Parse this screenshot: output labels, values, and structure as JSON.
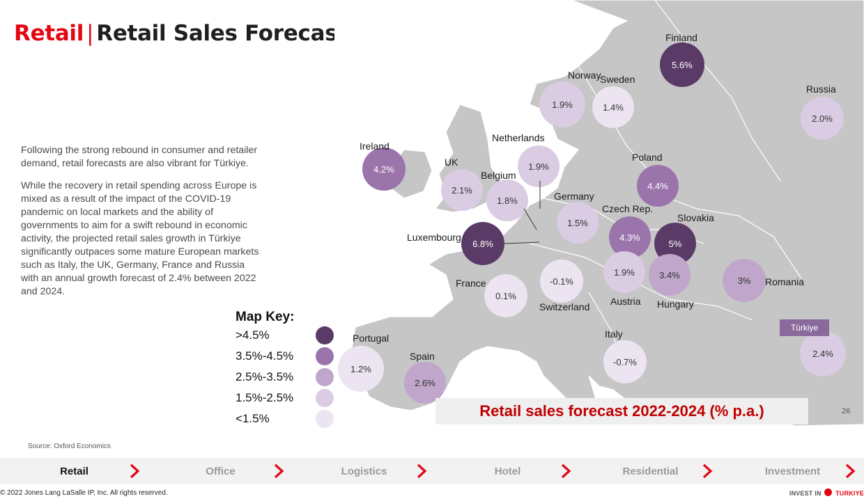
{
  "title": {
    "accent": "Retail",
    "separator": "|",
    "main": "Retail Sales Forecast"
  },
  "intro": [
    "Following the strong rebound in consumer and retailer demand, retail forecasts are also vibrant for Türkiye.",
    "While the recovery in retail spending across Europe is mixed as a result of the impact of the COVID-19 pandemic on local markets and the ability of governments to aim for a swift rebound in economic activity, the projected retail sales growth in Türkiye significantly outpaces some mature European markets such as Italy, the UK, Germany, France and Russia with an annual growth forecast of 2.4% between 2022 and 2024."
  ],
  "map_key": {
    "title": "Map Key:",
    "items": [
      {
        "label": ">4.5%",
        "color": "#5a3a66"
      },
      {
        "label": "3.5%-4.5%",
        "color": "#9a74ab"
      },
      {
        "label": "2.5%-3.5%",
        "color": "#bfa6ca"
      },
      {
        "label": "1.5%-2.5%",
        "color": "#dacce2"
      },
      {
        "label": "<1.5%",
        "color": "#ece4f0"
      }
    ]
  },
  "map": {
    "overlay_title": "Retail sales forecast 2022-2024 (% p.a.)",
    "turkiye_tag": "Türkiye",
    "countries": [
      {
        "name": "Finland",
        "value": "5.6%"
      },
      {
        "name": "Norway",
        "value": "1.9%"
      },
      {
        "name": "Sweden",
        "value": "1.4%"
      },
      {
        "name": "Russia",
        "value": "2.0%"
      },
      {
        "name": "Ireland",
        "value": "4.2%"
      },
      {
        "name": "UK",
        "value": "2.1%"
      },
      {
        "name": "Netherlands",
        "value": "1.9%"
      },
      {
        "name": "Belgium",
        "value": "1.8%"
      },
      {
        "name": "Poland",
        "value": "4.4%"
      },
      {
        "name": "Germany",
        "value": "1.5%"
      },
      {
        "name": "Czech Rep.",
        "value": "4.3%"
      },
      {
        "name": "Slovakia",
        "value": "5%"
      },
      {
        "name": "Luxembourg",
        "value": "6.8%"
      },
      {
        "name": "France",
        "value": "0.1%"
      },
      {
        "name": "Switzerland",
        "value": "-0.1%"
      },
      {
        "name": "Austria",
        "value": "1.9%"
      },
      {
        "name": "Hungary",
        "value": "3.4%"
      },
      {
        "name": "Romania",
        "value": "3%"
      },
      {
        "name": "Italy",
        "value": "-0.7%"
      },
      {
        "name": "Portugal",
        "value": "1.2%"
      },
      {
        "name": "Spain",
        "value": "2.6%"
      },
      {
        "name": "Türkiye",
        "value": "2.4%"
      }
    ]
  },
  "source": "Source: Oxford Economics",
  "page_number": "26",
  "nav": [
    {
      "label": "Retail"
    },
    {
      "label": "Office"
    },
    {
      "label": "Logistics"
    },
    {
      "label": "Hotel"
    },
    {
      "label": "Residential"
    },
    {
      "label": "Investment"
    }
  ],
  "footer": {
    "copyright": "© 2022 Jones Lang LaSalle IP, Inc. All rights reserved.",
    "brand_left": "INVEST IN",
    "brand_right": "TURKIYE"
  },
  "colors": {
    "accent": "#e30613",
    "land": "#c9c9c9",
    "sea": "#ffffff",
    "chevron": "#e30613"
  }
}
